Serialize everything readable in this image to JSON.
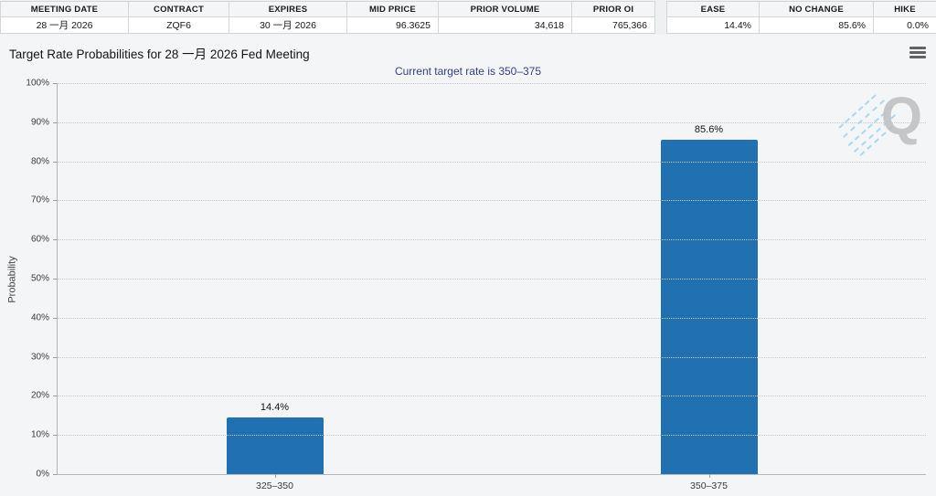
{
  "market_table": {
    "columns": [
      {
        "label": "MEETING DATE",
        "value": "28 一月 2026"
      },
      {
        "label": "CONTRACT",
        "value": "ZQF6"
      },
      {
        "label": "EXPIRES",
        "value": "30 一月 2026"
      },
      {
        "label": "MID PRICE",
        "value": "96.3625"
      },
      {
        "label": "PRIOR VOLUME",
        "value": "34,618"
      },
      {
        "label": "PRIOR OI",
        "value": "765,366"
      }
    ]
  },
  "probability_table": {
    "columns": [
      {
        "label": "EASE",
        "value": "14.4%"
      },
      {
        "label": "NO CHANGE",
        "value": "85.6%"
      },
      {
        "label": "HIKE",
        "value": "0.0%"
      }
    ]
  },
  "chart": {
    "title": "Target Rate Probabilities for 28 一月 2026 Fed Meeting",
    "subtitle": "Current target rate is 350–375",
    "watermark_letter": "Q"
  },
  "chart_data": {
    "type": "bar",
    "title": "Target Rate Probabilities for 28 一月 2026 Fed Meeting",
    "subtitle": "Current target rate is 350–375",
    "categories": [
      "325–350",
      "350–375"
    ],
    "values": [
      14.4,
      85.6
    ],
    "value_labels": [
      "14.4%",
      "85.6%"
    ],
    "xlabel": "",
    "ylabel": "Probability",
    "ylim": [
      0,
      100
    ],
    "ytick_labels": [
      "0%",
      "10%",
      "20%",
      "30%",
      "40%",
      "50%",
      "60%",
      "70%",
      "80%",
      "90%",
      "100%"
    ],
    "grid": "dotted horizontal",
    "legend": "none",
    "bar_color": "#2171b2"
  },
  "colors": {
    "bar": "#2171b2",
    "subtitle_text": "#35408d",
    "chart_background": "#f4f5f6",
    "watermark_gray": "#bfc1c3",
    "watermark_blue": "#a9d8f3"
  }
}
